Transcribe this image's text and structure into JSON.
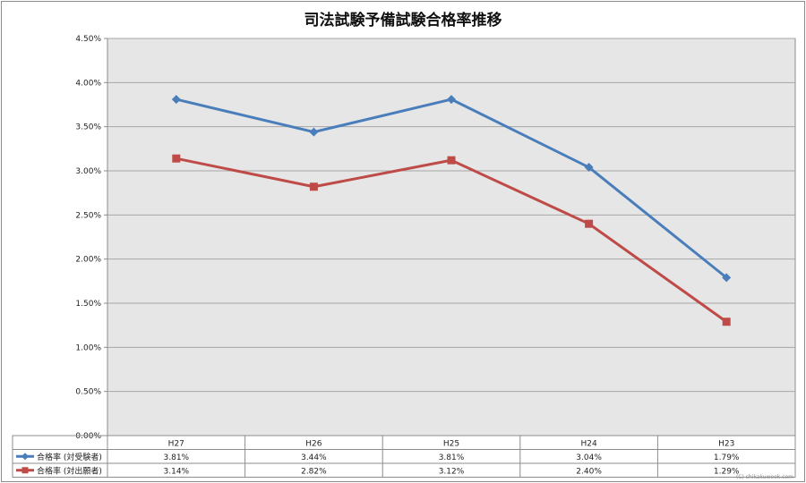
{
  "chart_data": {
    "type": "line",
    "title": "司法試験予備試験合格率推移",
    "categories": [
      "H27",
      "H26",
      "H25",
      "H24",
      "H23"
    ],
    "series": [
      {
        "name": "合格率 (対受験者)",
        "values": [
          3.81,
          3.44,
          3.81,
          3.04,
          1.79
        ],
        "labels": [
          "3.81%",
          "3.44%",
          "3.81%",
          "3.04%",
          "1.79%"
        ],
        "color": "#4a7ebb",
        "marker": "diamond"
      },
      {
        "name": "合格率 (対出願者)",
        "values": [
          3.14,
          2.82,
          3.12,
          2.4,
          1.29
        ],
        "labels": [
          "3.14%",
          "2.82%",
          "3.12%",
          "2.40%",
          "1.29%"
        ],
        "color": "#be4b48",
        "marker": "square"
      }
    ],
    "ylim": [
      0,
      4.5
    ],
    "yticks": [
      0,
      0.5,
      1.0,
      1.5,
      2.0,
      2.5,
      3.0,
      3.5,
      4.0,
      4.5
    ],
    "ytick_labels": [
      "0.00%",
      "0.50%",
      "1.00%",
      "1.50%",
      "2.00%",
      "2.50%",
      "3.00%",
      "3.50%",
      "4.00%",
      "4.50%"
    ],
    "grid": true,
    "legend": "data-table",
    "plot_background": "#e6e6e6",
    "gridline_color": "#a6a6a6"
  },
  "watermark": "(C) shikakuweek.com"
}
